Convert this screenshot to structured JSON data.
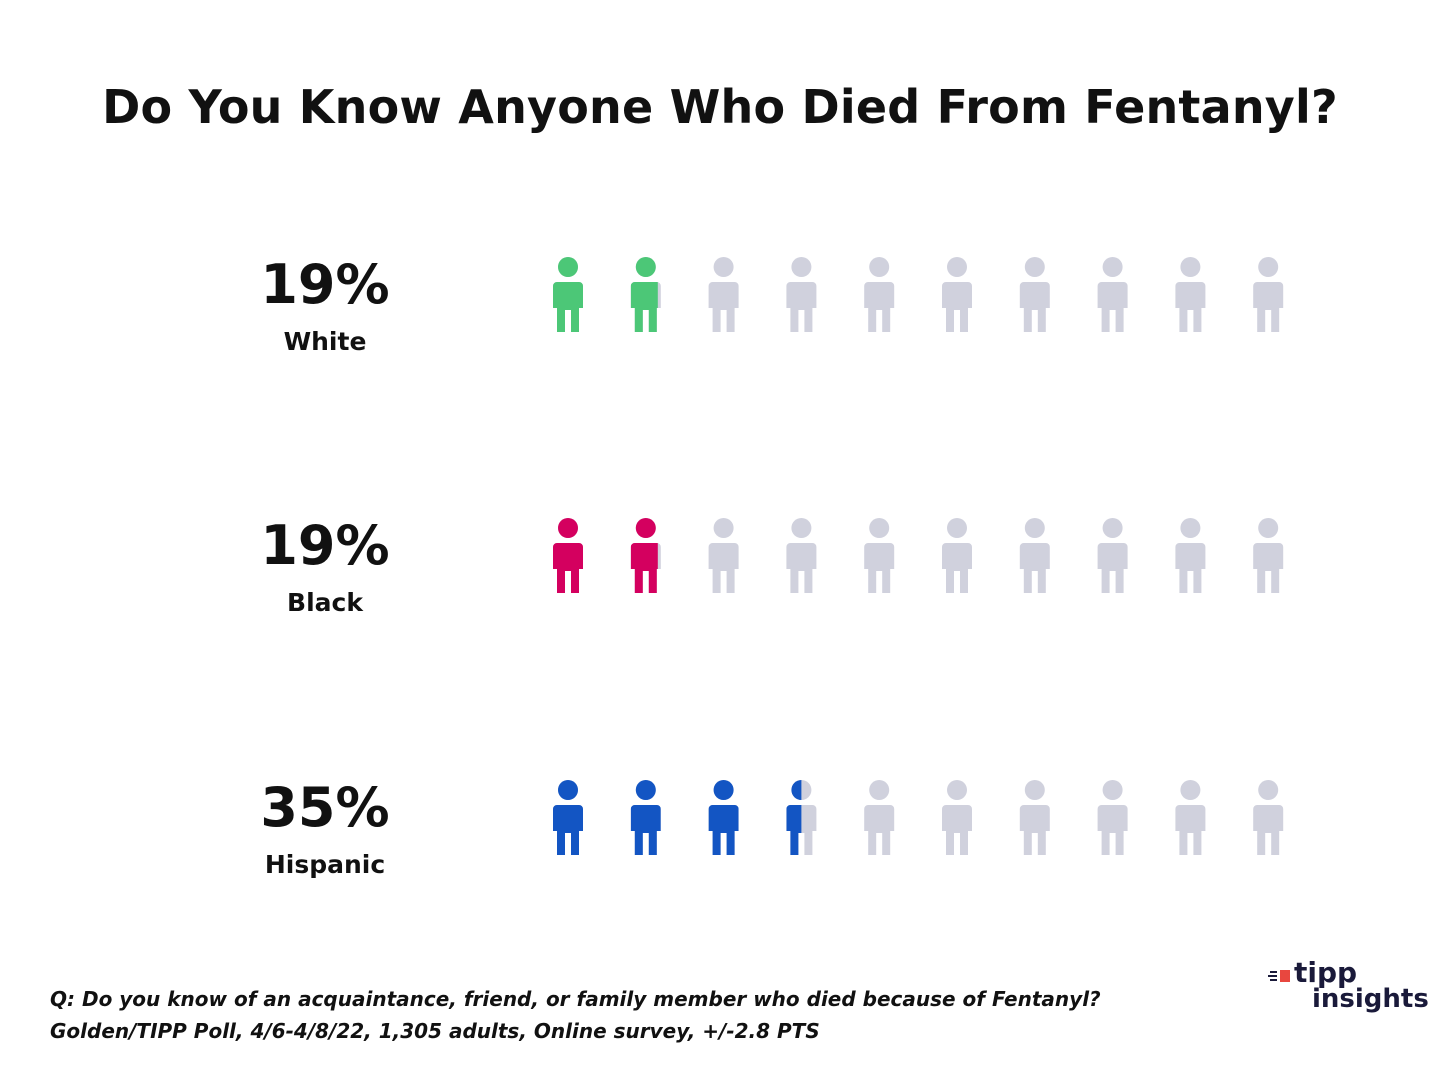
{
  "title": "Do You Know Anyone Who Died From Fentanyl?",
  "chart_data": {
    "type": "pictogram",
    "title": "Do You Know Anyone Who Died From Fentanyl?",
    "icons_per_row": 10,
    "inactive_color": "#d0d1dd",
    "series": [
      {
        "name": "White",
        "value": 19,
        "label": "19%",
        "color": "#4cc777"
      },
      {
        "name": "Black",
        "value": 19,
        "label": "19%",
        "color": "#d4005f"
      },
      {
        "name": "Hispanic",
        "value": 35,
        "label": "35%",
        "color": "#1355c3"
      }
    ]
  },
  "footer": {
    "question": "Q: Do you know of an acquaintance, friend, or family member who died because of Fentanyl?",
    "source": "Golden/TIPP Poll, 4/6-4/8/22, 1,305 adults, Online survey, +/-2.8 PTS"
  },
  "logo": {
    "line1": "tipp",
    "line2": "insights",
    "accent_color": "#e8473f"
  }
}
